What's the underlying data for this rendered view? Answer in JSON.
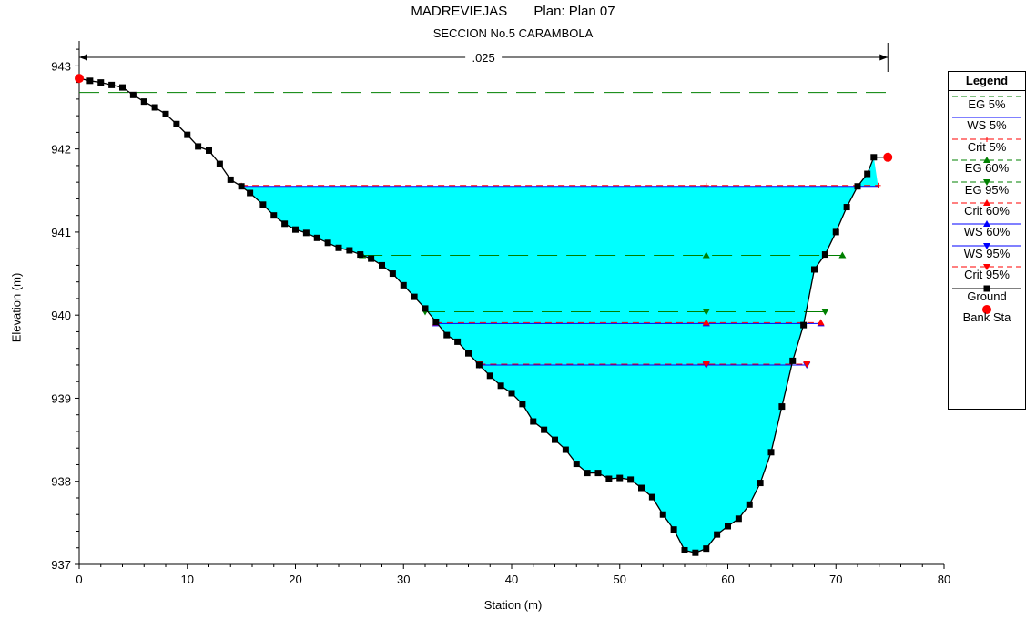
{
  "title": "MADREVIEJAS       Plan: Plan 07",
  "subtitle": "SECCION No.5 CARAMBOLA",
  "colors": {
    "water": "#00ffff",
    "ground": "#000000",
    "eg": "#008000",
    "ws": "#0000ff",
    "crit": "#ff0000",
    "bank": "#ff0000"
  },
  "legend": {
    "title": "Legend",
    "items": [
      {
        "label": "EG 5%",
        "style": "eg",
        "marker": "none"
      },
      {
        "label": "WS 5%",
        "style": "ws",
        "marker": "none"
      },
      {
        "label": "Crit 5%",
        "style": "crit",
        "marker": "plus"
      },
      {
        "label": "EG 60%",
        "style": "eg",
        "marker": "tri-up"
      },
      {
        "label": "EG 95%",
        "style": "eg",
        "marker": "tri-down"
      },
      {
        "label": "Crit 60%",
        "style": "crit",
        "marker": "tri-up"
      },
      {
        "label": "WS 60%",
        "style": "ws",
        "marker": "tri-up"
      },
      {
        "label": "WS 95%",
        "style": "ws",
        "marker": "tri-down"
      },
      {
        "label": "Crit 95%",
        "style": "crit",
        "marker": "tri-down"
      },
      {
        "label": "Ground",
        "style": "ground",
        "marker": "square"
      },
      {
        "label": "Bank Sta",
        "style": "bank",
        "marker": "dot"
      }
    ]
  },
  "chart_data": {
    "type": "line",
    "xlabel": "Station (m)",
    "ylabel": "Elevation (m)",
    "xlim": [
      0,
      80
    ],
    "ylim": [
      937,
      943.3
    ],
    "xticks": [
      "0",
      "10",
      "20",
      "30",
      "40",
      "50",
      "60",
      "70",
      "80"
    ],
    "yticks": [
      "937",
      "938",
      "939",
      "940",
      "941",
      "942",
      "943"
    ],
    "roughness_label": ".025",
    "roughness_extent": [
      0,
      74.8
    ],
    "ground": {
      "name": "Ground",
      "points": [
        [
          0,
          942.85
        ],
        [
          1,
          942.82
        ],
        [
          2,
          942.8
        ],
        [
          3,
          942.77
        ],
        [
          4,
          942.74
        ],
        [
          5,
          942.65
        ],
        [
          6,
          942.57
        ],
        [
          7,
          942.5
        ],
        [
          8,
          942.42
        ],
        [
          9,
          942.3
        ],
        [
          10,
          942.17
        ],
        [
          11,
          942.03
        ],
        [
          12,
          941.98
        ],
        [
          13,
          941.82
        ],
        [
          14,
          941.63
        ],
        [
          15,
          941.55
        ],
        [
          15.8,
          941.47
        ],
        [
          17,
          941.33
        ],
        [
          18,
          941.2
        ],
        [
          19,
          941.1
        ],
        [
          20,
          941.03
        ],
        [
          21,
          940.99
        ],
        [
          22,
          940.93
        ],
        [
          23,
          940.87
        ],
        [
          24,
          940.81
        ],
        [
          25,
          940.78
        ],
        [
          26,
          940.73
        ],
        [
          27,
          940.68
        ],
        [
          28,
          940.6
        ],
        [
          29,
          940.5
        ],
        [
          30,
          940.36
        ],
        [
          31,
          940.22
        ],
        [
          32,
          940.08
        ],
        [
          33,
          939.92
        ],
        [
          34,
          939.76
        ],
        [
          35,
          939.68
        ],
        [
          36,
          939.54
        ],
        [
          37,
          939.4
        ],
        [
          38,
          939.27
        ],
        [
          39,
          939.15
        ],
        [
          40,
          939.06
        ],
        [
          41,
          938.93
        ],
        [
          42,
          938.72
        ],
        [
          43,
          938.62
        ],
        [
          44,
          938.5
        ],
        [
          45,
          938.38
        ],
        [
          46,
          938.21
        ],
        [
          47,
          938.1
        ],
        [
          48,
          938.1
        ],
        [
          49,
          938.03
        ],
        [
          50,
          938.04
        ],
        [
          51,
          938.02
        ],
        [
          52,
          937.92
        ],
        [
          53,
          937.81
        ],
        [
          54,
          937.6
        ],
        [
          55,
          937.42
        ],
        [
          56,
          937.17
        ],
        [
          57,
          937.14
        ],
        [
          58,
          937.19
        ],
        [
          59,
          937.36
        ],
        [
          60,
          937.46
        ],
        [
          61,
          937.55
        ],
        [
          62,
          937.72
        ],
        [
          63,
          937.98
        ],
        [
          64,
          938.35
        ],
        [
          65,
          938.9
        ],
        [
          66,
          939.45
        ],
        [
          67,
          939.88
        ],
        [
          68,
          940.55
        ],
        [
          69,
          940.73
        ],
        [
          70,
          941
        ],
        [
          71,
          941.3
        ],
        [
          72,
          941.55
        ],
        [
          72.9,
          941.7
        ],
        [
          73.5,
          941.9
        ]
      ],
      "markers_every": 1
    },
    "bank_stations": [
      [
        0,
        942.85
      ],
      [
        74.8,
        941.9
      ]
    ],
    "profiles": [
      {
        "name": "EG 5%",
        "style": "eg",
        "dashed": true,
        "marker": "none",
        "y": 942.68,
        "x": [
          0,
          75
        ]
      },
      {
        "name": "WS 5%",
        "style": "ws",
        "dashed": false,
        "marker": "none",
        "y": 941.55,
        "x": [
          15,
          73.9
        ]
      },
      {
        "name": "Crit 5%",
        "style": "crit",
        "dashed": true,
        "marker": "plus",
        "y": 941.56,
        "x": [
          15,
          73.9
        ]
      },
      {
        "name": "EG 60%",
        "style": "eg",
        "dashed": true,
        "marker": "tri-up",
        "y": 940.72,
        "x": [
          26.2,
          70.6
        ]
      },
      {
        "name": "EG 95%",
        "style": "eg",
        "dashed": true,
        "marker": "tri-down",
        "y": 940.04,
        "x": [
          32,
          69
        ]
      },
      {
        "name": "WS 60%",
        "style": "ws",
        "dashed": false,
        "marker": "tri-up",
        "y": 939.9,
        "x": [
          33,
          68.6
        ]
      },
      {
        "name": "Crit 60%",
        "style": "crit",
        "dashed": true,
        "marker": "tri-up",
        "y": 939.91,
        "x": [
          33,
          68.6
        ]
      },
      {
        "name": "WS 95%",
        "style": "ws",
        "dashed": false,
        "marker": "tri-down",
        "y": 939.4,
        "x": [
          37,
          67.3
        ]
      },
      {
        "name": "Crit 95%",
        "style": "crit",
        "dashed": true,
        "marker": "tri-down",
        "y": 939.41,
        "x": [
          37,
          67.3
        ]
      }
    ],
    "water_surface": {
      "y": 941.55,
      "x_from": 15,
      "x_to": 73.9
    },
    "profile_marker_x": 58,
    "grid": false,
    "legend_position": "right"
  }
}
